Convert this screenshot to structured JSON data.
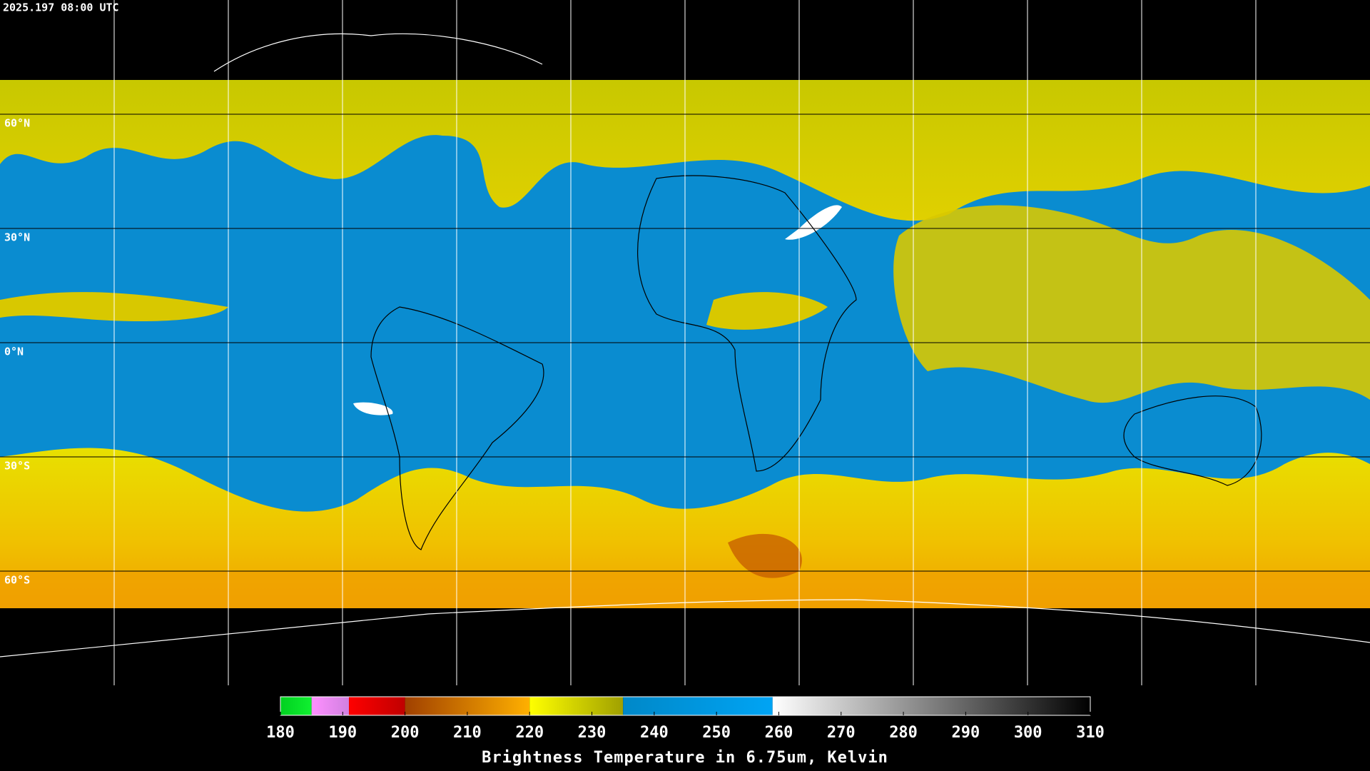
{
  "timestamp": "2025.197 08:00 UTC",
  "map": {
    "lon_range": [
      -180,
      180
    ],
    "lat_range": [
      -90,
      90
    ],
    "lon_grid": [
      -150,
      -120,
      -90,
      -60,
      -30,
      0,
      30,
      60,
      90,
      120,
      150
    ],
    "lat_grid": [
      {
        "value": 60,
        "label": "60°N"
      },
      {
        "value": 30,
        "label": "30°N"
      },
      {
        "value": 0,
        "label": "0°N"
      },
      {
        "value": -30,
        "label": "30°S"
      },
      {
        "value": -60,
        "label": "60°S"
      }
    ]
  },
  "colorbar": {
    "range": [
      180,
      310
    ],
    "ticks": [
      180,
      190,
      200,
      210,
      220,
      230,
      240,
      250,
      260,
      270,
      280,
      290,
      300,
      310
    ],
    "segments": [
      {
        "from": 180,
        "to": 185,
        "colors": [
          "#00d020",
          "#10f030"
        ]
      },
      {
        "from": 185,
        "to": 191,
        "colors": [
          "#ff90ff",
          "#d080e0"
        ]
      },
      {
        "from": 191,
        "to": 200,
        "colors": [
          "#ff0000",
          "#c00000"
        ]
      },
      {
        "from": 200,
        "to": 220,
        "colors": [
          "#a04000",
          "#ffb000"
        ]
      },
      {
        "from": 220,
        "to": 235,
        "colors": [
          "#ffff00",
          "#a0a000"
        ]
      },
      {
        "from": 235,
        "to": 259,
        "colors": [
          "#0088c8",
          "#00a4f4"
        ]
      },
      {
        "from": 259,
        "to": 310,
        "colors": [
          "#ffffff",
          "#000000"
        ]
      }
    ],
    "label": "Brightness Temperature in 6.75um, Kelvin"
  }
}
